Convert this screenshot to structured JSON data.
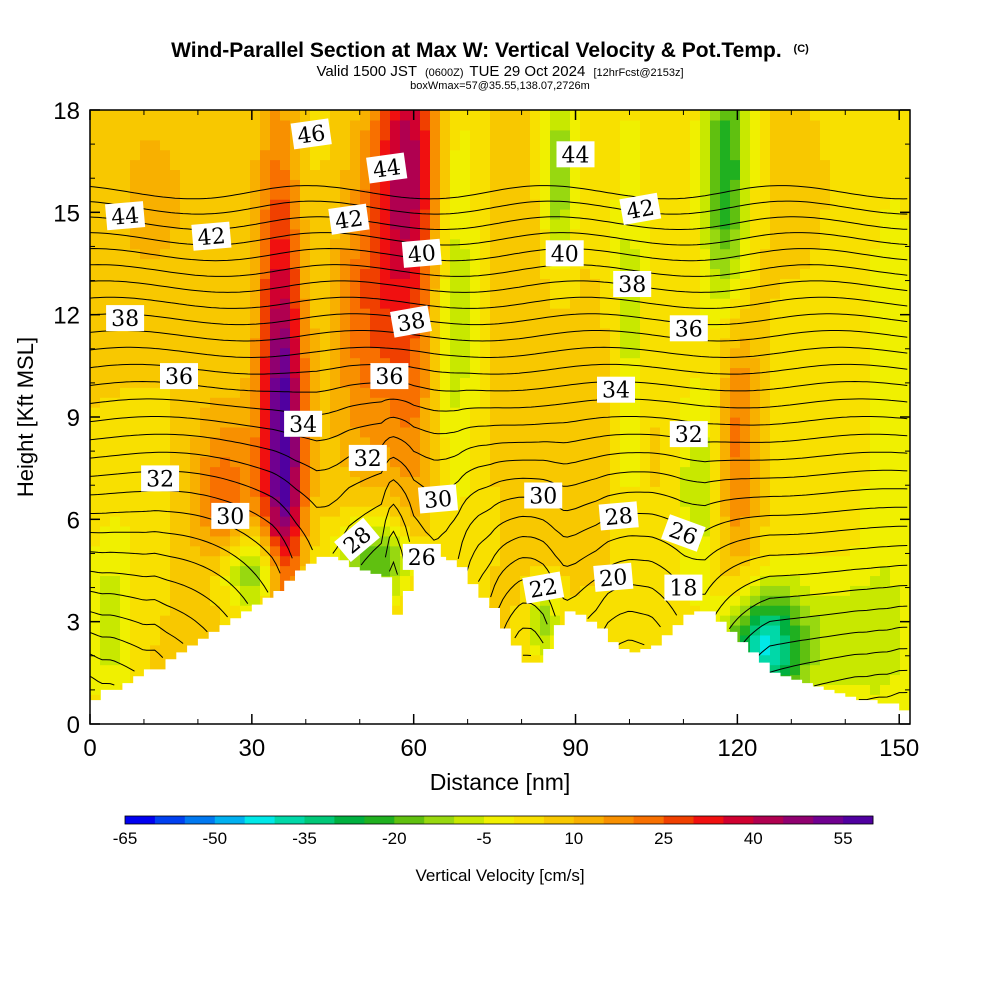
{
  "chart_data": {
    "type": "heatmap",
    "title": "Wind-Parallel Section at Max W: Vertical Velocity & Pot.Temp.",
    "title_mark": "(C)",
    "subtitle_main": "Valid 1500 JST",
    "subtitle_utc": "(0600Z)",
    "subtitle_date": "TUE 29 Oct 2024",
    "subtitle_fcst": "[12hrFcst@2153z]",
    "subtitle2": "boxWmax=57@35.55,138.07,2726m",
    "xlabel": "Distance [nm]",
    "ylabel": "Height [Kft MSL]",
    "xlim": [
      0,
      152
    ],
    "ylim": [
      0,
      18
    ],
    "xticks": [
      0,
      30,
      60,
      90,
      120,
      150
    ],
    "yticks": [
      0,
      3,
      6,
      9,
      12,
      15,
      18
    ],
    "colorbar": {
      "label": "Vertical Velocity [cm/s]",
      "min": -65,
      "max": 60,
      "step": 5,
      "tick_labels": [
        -65,
        -50,
        -35,
        -20,
        -5,
        10,
        25,
        40,
        55
      ],
      "colors": [
        "#0000f0",
        "#0040f0",
        "#0078f0",
        "#00b0f0",
        "#00e8e8",
        "#00d8a8",
        "#00c878",
        "#00b040",
        "#20b020",
        "#60c010",
        "#98d810",
        "#c8e800",
        "#f0f000",
        "#f8e000",
        "#f8c800",
        "#f8b000",
        "#f89000",
        "#f87000",
        "#f04000",
        "#f01010",
        "#d00030",
        "#b00050",
        "#900070",
        "#700090",
        "#5000a0"
      ]
    },
    "terrain": {
      "x": [
        0,
        2,
        4,
        6,
        8,
        10,
        12,
        14,
        16,
        18,
        20,
        22,
        24,
        26,
        28,
        30,
        32,
        34,
        36,
        38,
        40,
        42,
        44,
        46,
        48,
        50,
        52,
        54,
        56,
        58,
        60,
        62,
        64,
        66,
        68,
        70,
        72,
        74,
        76,
        78,
        80,
        82,
        84,
        86,
        88,
        90,
        92,
        94,
        96,
        98,
        100,
        102,
        104,
        106,
        108,
        110,
        112,
        114,
        116,
        118,
        120,
        122,
        124,
        126,
        128,
        130,
        132,
        134,
        136,
        138,
        140,
        142,
        144,
        146,
        148,
        150,
        152
      ],
      "height_kft": [
        0.7,
        1.0,
        1.0,
        1.2,
        1.4,
        1.6,
        1.6,
        1.9,
        2.1,
        2.3,
        2.5,
        2.7,
        2.9,
        3.1,
        3.3,
        3.5,
        3.7,
        3.9,
        4.2,
        4.5,
        4.7,
        4.9,
        4.9,
        4.8,
        4.6,
        4.5,
        4.4,
        4.3,
        3.2,
        3.9,
        4.6,
        4.8,
        4.9,
        4.8,
        4.6,
        4.1,
        3.7,
        3.4,
        2.8,
        2.3,
        1.8,
        1.8,
        2.2,
        2.9,
        3.3,
        3.2,
        3.0,
        2.8,
        2.4,
        2.2,
        2.1,
        2.2,
        2.3,
        2.6,
        2.9,
        3.2,
        3.3,
        3.3,
        3.0,
        2.7,
        2.4,
        2.1,
        1.8,
        1.5,
        1.4,
        1.3,
        1.2,
        1.1,
        1.0,
        0.9,
        0.8,
        0.7,
        0.7,
        0.6,
        0.6,
        0.4,
        0.4
      ]
    },
    "updrafts": [
      {
        "x": 36,
        "y": 7.5,
        "sx": 2.5,
        "sy": 3.2,
        "w": 45
      },
      {
        "x": 35,
        "y": 13,
        "sx": 3,
        "sy": 4,
        "w": 25
      },
      {
        "x": 59,
        "y": 16.5,
        "sx": 4,
        "sy": 3,
        "w": 35
      },
      {
        "x": 52,
        "y": 12.5,
        "sx": 5,
        "sy": 3.5,
        "w": 20
      },
      {
        "x": 25,
        "y": 6.5,
        "sx": 5,
        "sy": 2,
        "w": 20
      },
      {
        "x": 60,
        "y": 9,
        "sx": 3,
        "sy": 3,
        "w": 12
      },
      {
        "x": 120,
        "y": 8.5,
        "sx": 3,
        "sy": 3,
        "w": 20
      },
      {
        "x": 82,
        "y": 10,
        "sx": 10,
        "sy": 4,
        "w": 5
      },
      {
        "x": 10,
        "y": 15,
        "sx": 10,
        "sy": 4,
        "w": 5
      }
    ],
    "downdrafts": [
      {
        "x": 118,
        "y": 16,
        "sx": 3,
        "sy": 3,
        "w": -30
      },
      {
        "x": 125,
        "y": 2.2,
        "sx": 5,
        "sy": 1.2,
        "w": -45
      },
      {
        "x": 30,
        "y": 4.5,
        "sx": 5,
        "sy": 0.9,
        "w": -25
      },
      {
        "x": 53,
        "y": 4.8,
        "sx": 5,
        "sy": 0.9,
        "w": -25
      },
      {
        "x": 68,
        "y": 13,
        "sx": 3,
        "sy": 4,
        "w": -15
      },
      {
        "x": 87,
        "y": 16,
        "sx": 2,
        "sy": 2,
        "w": -20
      },
      {
        "x": 113,
        "y": 7,
        "sx": 3,
        "sy": 2,
        "w": -15
      },
      {
        "x": 100,
        "y": 11,
        "sx": 2,
        "sy": 4,
        "w": -12
      },
      {
        "x": 4,
        "y": 3,
        "sx": 3,
        "sy": 2,
        "w": -12
      },
      {
        "x": 140,
        "y": 2.5,
        "sx": 8,
        "sy": 1.5,
        "w": -12
      },
      {
        "x": 148,
        "y": 8,
        "sx": 4,
        "sy": 5,
        "w": -8
      },
      {
        "x": 84,
        "y": 3,
        "sx": 2,
        "sy": 0.7,
        "w": -20
      }
    ],
    "theta_levels": {
      "min": 17,
      "max": 47,
      "step": 1
    },
    "contour_labels": [
      {
        "text": "46",
        "x": 41,
        "y": 17.3,
        "angle": -8
      },
      {
        "text": "44",
        "x": 55,
        "y": 16.3,
        "angle": -8
      },
      {
        "text": "44",
        "x": 90,
        "y": 16.7,
        "angle": 0
      },
      {
        "text": "44",
        "x": 6.5,
        "y": 14.9,
        "angle": -5
      },
      {
        "text": "42",
        "x": 22.5,
        "y": 14.3,
        "angle": -5
      },
      {
        "text": "42",
        "x": 48,
        "y": 14.8,
        "angle": -8
      },
      {
        "text": "42",
        "x": 102,
        "y": 15.1,
        "angle": -10
      },
      {
        "text": "40",
        "x": 61.5,
        "y": 13.8,
        "angle": -5
      },
      {
        "text": "40",
        "x": 88,
        "y": 13.8,
        "angle": 0
      },
      {
        "text": "38",
        "x": 100.5,
        "y": 12.9,
        "angle": 0
      },
      {
        "text": "38",
        "x": 6.5,
        "y": 11.9,
        "angle": 0
      },
      {
        "text": "38",
        "x": 59.5,
        "y": 11.8,
        "angle": -10
      },
      {
        "text": "36",
        "x": 111,
        "y": 11.6,
        "angle": 0
      },
      {
        "text": "36",
        "x": 16.5,
        "y": 10.2,
        "angle": 0
      },
      {
        "text": "36",
        "x": 55.5,
        "y": 10.2,
        "angle": 0
      },
      {
        "text": "34",
        "x": 97.5,
        "y": 9.8,
        "angle": 0
      },
      {
        "text": "34",
        "x": 39.5,
        "y": 8.8,
        "angle": 0
      },
      {
        "text": "32",
        "x": 111,
        "y": 8.5,
        "angle": 0
      },
      {
        "text": "32",
        "x": 51.5,
        "y": 7.8,
        "angle": 0
      },
      {
        "text": "32",
        "x": 13,
        "y": 7.2,
        "angle": 0
      },
      {
        "text": "30",
        "x": 64.5,
        "y": 6.6,
        "angle": -5
      },
      {
        "text": "30",
        "x": 84,
        "y": 6.7,
        "angle": 0
      },
      {
        "text": "30",
        "x": 26,
        "y": 6.1,
        "angle": 0
      },
      {
        "text": "28",
        "x": 98,
        "y": 6.1,
        "angle": -5
      },
      {
        "text": "28",
        "x": 49.5,
        "y": 5.4,
        "angle": -40
      },
      {
        "text": "26",
        "x": 110,
        "y": 5.6,
        "angle": 20
      },
      {
        "text": "26",
        "x": 61.5,
        "y": 4.9,
        "angle": 0
      },
      {
        "text": "22",
        "x": 84,
        "y": 4.0,
        "angle": -10
      },
      {
        "text": "20",
        "x": 97,
        "y": 4.3,
        "angle": -5
      },
      {
        "text": "18",
        "x": 110,
        "y": 4.0,
        "angle": 0
      }
    ]
  }
}
